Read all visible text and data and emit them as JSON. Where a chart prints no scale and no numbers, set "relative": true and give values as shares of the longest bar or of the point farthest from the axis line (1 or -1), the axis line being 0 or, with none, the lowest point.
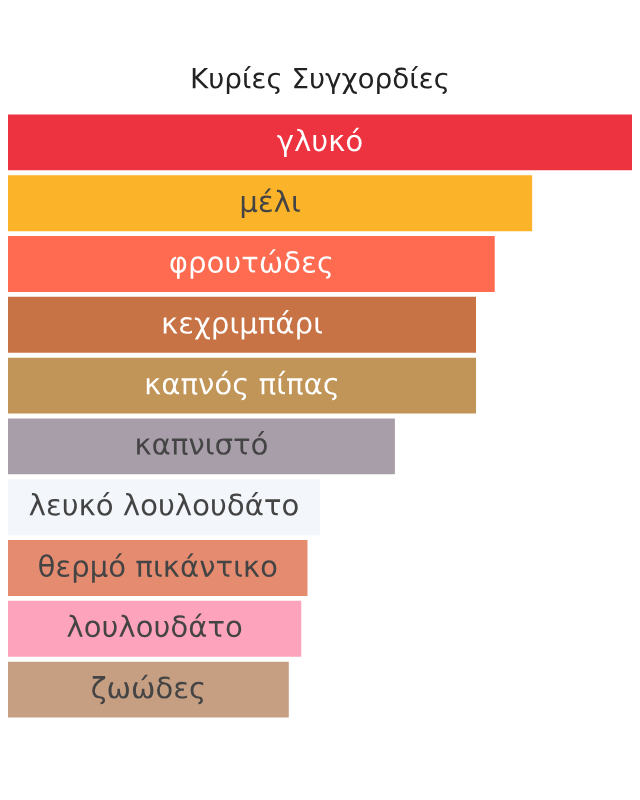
{
  "chart_data": {
    "type": "bar",
    "orientation": "horizontal",
    "relative": true,
    "title": "Κυρίες Συγχορδίες",
    "categories": [
      "γλυκό",
      "μέλι",
      "φρουτώδες",
      "κεχριμπάρι",
      "καπνός πίπας",
      "καπνιστό",
      "λευκό λουλουδάτο",
      "θερμό πικάντικο",
      "λουλουδάτο",
      "ζωώδες"
    ],
    "values": [
      1,
      0.84,
      0.78,
      0.75,
      0.75,
      0.62,
      0.5,
      0.48,
      0.47,
      0.45
    ],
    "colors": [
      "#ee3340",
      "#fbb32a",
      "#fe6b50",
      "#c87345",
      "#c19557",
      "#a89ea9",
      "#f3f6fb",
      "#e58b70",
      "#fda3bb",
      "#c69f83"
    ]
  }
}
